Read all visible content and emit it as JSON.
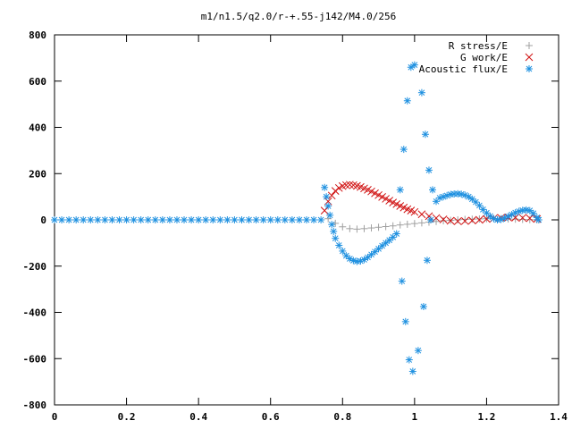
{
  "chart_data": {
    "type": "scatter",
    "title": "m1/n1.5/q2.0/r-+.55-j142/M4.0/256",
    "xlabel": "",
    "ylabel": "",
    "xlim": [
      0,
      1.4
    ],
    "ylim": [
      -800,
      800
    ],
    "xticks": [
      "0",
      "0.2",
      "0.4",
      "0.6",
      "0.8",
      "1",
      "1.2",
      "1.4"
    ],
    "yticks": [
      "-800",
      "-600",
      "-400",
      "-200",
      "0",
      "200",
      "400",
      "600",
      "800"
    ],
    "legend_position": "top-right",
    "grid": false,
    "series": [
      {
        "name": "R stress/E",
        "marker": "plus",
        "color": "#a0a0a0",
        "points": [
          [
            0.76,
            5
          ],
          [
            0.78,
            -15
          ],
          [
            0.8,
            -30
          ],
          [
            0.82,
            -38
          ],
          [
            0.84,
            -40
          ],
          [
            0.86,
            -38
          ],
          [
            0.88,
            -35
          ],
          [
            0.9,
            -32
          ],
          [
            0.92,
            -29
          ],
          [
            0.94,
            -26
          ],
          [
            0.96,
            -22
          ],
          [
            0.98,
            -19
          ],
          [
            1.0,
            -16
          ],
          [
            1.02,
            -13
          ],
          [
            1.04,
            -10
          ],
          [
            1.06,
            -7
          ],
          [
            1.08,
            -4
          ],
          [
            1.1,
            -2
          ],
          [
            1.12,
            0
          ],
          [
            1.14,
            2
          ],
          [
            1.16,
            3
          ],
          [
            1.18,
            4
          ],
          [
            1.2,
            5
          ],
          [
            1.22,
            6
          ],
          [
            1.24,
            5
          ],
          [
            1.26,
            4
          ],
          [
            1.28,
            3
          ],
          [
            1.3,
            2
          ],
          [
            1.32,
            1
          ],
          [
            1.34,
            0
          ]
        ]
      },
      {
        "name": "G work/E",
        "marker": "cross",
        "color": "#d01010",
        "points": [
          [
            0.75,
            40
          ],
          [
            0.76,
            80
          ],
          [
            0.77,
            105
          ],
          [
            0.78,
            125
          ],
          [
            0.79,
            138
          ],
          [
            0.8,
            146
          ],
          [
            0.81,
            150
          ],
          [
            0.82,
            152
          ],
          [
            0.83,
            150
          ],
          [
            0.84,
            147
          ],
          [
            0.85,
            142
          ],
          [
            0.86,
            136
          ],
          [
            0.87,
            130
          ],
          [
            0.88,
            123
          ],
          [
            0.89,
            115
          ],
          [
            0.9,
            107
          ],
          [
            0.91,
            99
          ],
          [
            0.92,
            91
          ],
          [
            0.93,
            83
          ],
          [
            0.94,
            75
          ],
          [
            0.95,
            68
          ],
          [
            0.96,
            60
          ],
          [
            0.97,
            53
          ],
          [
            0.98,
            46
          ],
          [
            0.99,
            40
          ],
          [
            1.0,
            34
          ],
          [
            1.02,
            24
          ],
          [
            1.04,
            16
          ],
          [
            1.06,
            8
          ],
          [
            1.08,
            2
          ],
          [
            1.1,
            -4
          ],
          [
            1.12,
            -6
          ],
          [
            1.14,
            -5
          ],
          [
            1.16,
            -3
          ],
          [
            1.18,
            0
          ],
          [
            1.2,
            4
          ],
          [
            1.22,
            7
          ],
          [
            1.24,
            9
          ],
          [
            1.26,
            10
          ],
          [
            1.28,
            10
          ],
          [
            1.3,
            9
          ],
          [
            1.32,
            7
          ],
          [
            1.34,
            4
          ]
        ]
      },
      {
        "name": "Acoustic flux/E",
        "marker": "star",
        "color": "#1e90e0",
        "points": [
          [
            0.0,
            0
          ],
          [
            0.02,
            0
          ],
          [
            0.04,
            0
          ],
          [
            0.06,
            0
          ],
          [
            0.08,
            0
          ],
          [
            0.1,
            0
          ],
          [
            0.12,
            0
          ],
          [
            0.14,
            0
          ],
          [
            0.16,
            0
          ],
          [
            0.18,
            0
          ],
          [
            0.2,
            0
          ],
          [
            0.22,
            0
          ],
          [
            0.24,
            0
          ],
          [
            0.26,
            0
          ],
          [
            0.28,
            0
          ],
          [
            0.3,
            0
          ],
          [
            0.32,
            0
          ],
          [
            0.34,
            0
          ],
          [
            0.36,
            0
          ],
          [
            0.38,
            0
          ],
          [
            0.4,
            0
          ],
          [
            0.42,
            0
          ],
          [
            0.44,
            0
          ],
          [
            0.46,
            0
          ],
          [
            0.48,
            0
          ],
          [
            0.5,
            0
          ],
          [
            0.52,
            0
          ],
          [
            0.54,
            0
          ],
          [
            0.56,
            0
          ],
          [
            0.58,
            0
          ],
          [
            0.6,
            0
          ],
          [
            0.62,
            0
          ],
          [
            0.64,
            0
          ],
          [
            0.66,
            0
          ],
          [
            0.68,
            0
          ],
          [
            0.7,
            0
          ],
          [
            0.72,
            0
          ],
          [
            0.74,
            0
          ],
          [
            0.75,
            140
          ],
          [
            0.755,
            100
          ],
          [
            0.76,
            60
          ],
          [
            0.765,
            20
          ],
          [
            0.77,
            -20
          ],
          [
            0.775,
            -50
          ],
          [
            0.78,
            -80
          ],
          [
            0.79,
            -110
          ],
          [
            0.8,
            -135
          ],
          [
            0.81,
            -155
          ],
          [
            0.82,
            -168
          ],
          [
            0.83,
            -176
          ],
          [
            0.84,
            -180
          ],
          [
            0.85,
            -178
          ],
          [
            0.86,
            -172
          ],
          [
            0.87,
            -162
          ],
          [
            0.88,
            -150
          ],
          [
            0.89,
            -138
          ],
          [
            0.9,
            -125
          ],
          [
            0.91,
            -112
          ],
          [
            0.92,
            -100
          ],
          [
            0.93,
            -88
          ],
          [
            0.94,
            -75
          ],
          [
            0.95,
            -60
          ],
          [
            0.96,
            130
          ],
          [
            0.965,
            -265
          ],
          [
            0.97,
            305
          ],
          [
            0.975,
            -440
          ],
          [
            0.98,
            515
          ],
          [
            0.985,
            -605
          ],
          [
            0.99,
            660
          ],
          [
            0.995,
            -655
          ],
          [
            1.0,
            670
          ],
          [
            1.01,
            -565
          ],
          [
            1.02,
            550
          ],
          [
            1.025,
            -375
          ],
          [
            1.03,
            370
          ],
          [
            1.035,
            -175
          ],
          [
            1.04,
            215
          ],
          [
            1.045,
            0
          ],
          [
            1.05,
            130
          ],
          [
            1.06,
            80
          ],
          [
            1.07,
            95
          ],
          [
            1.08,
            100
          ],
          [
            1.09,
            105
          ],
          [
            1.1,
            110
          ],
          [
            1.11,
            112
          ],
          [
            1.12,
            113
          ],
          [
            1.13,
            111
          ],
          [
            1.14,
            107
          ],
          [
            1.15,
            100
          ],
          [
            1.16,
            90
          ],
          [
            1.17,
            77
          ],
          [
            1.18,
            62
          ],
          [
            1.19,
            45
          ],
          [
            1.2,
            30
          ],
          [
            1.21,
            16
          ],
          [
            1.22,
            5
          ],
          [
            1.23,
            0
          ],
          [
            1.24,
            2
          ],
          [
            1.25,
            8
          ],
          [
            1.26,
            15
          ],
          [
            1.27,
            23
          ],
          [
            1.28,
            31
          ],
          [
            1.29,
            37
          ],
          [
            1.3,
            41
          ],
          [
            1.31,
            43
          ],
          [
            1.32,
            40
          ],
          [
            1.33,
            28
          ],
          [
            1.34,
            10
          ],
          [
            1.345,
            0
          ]
        ]
      }
    ]
  }
}
